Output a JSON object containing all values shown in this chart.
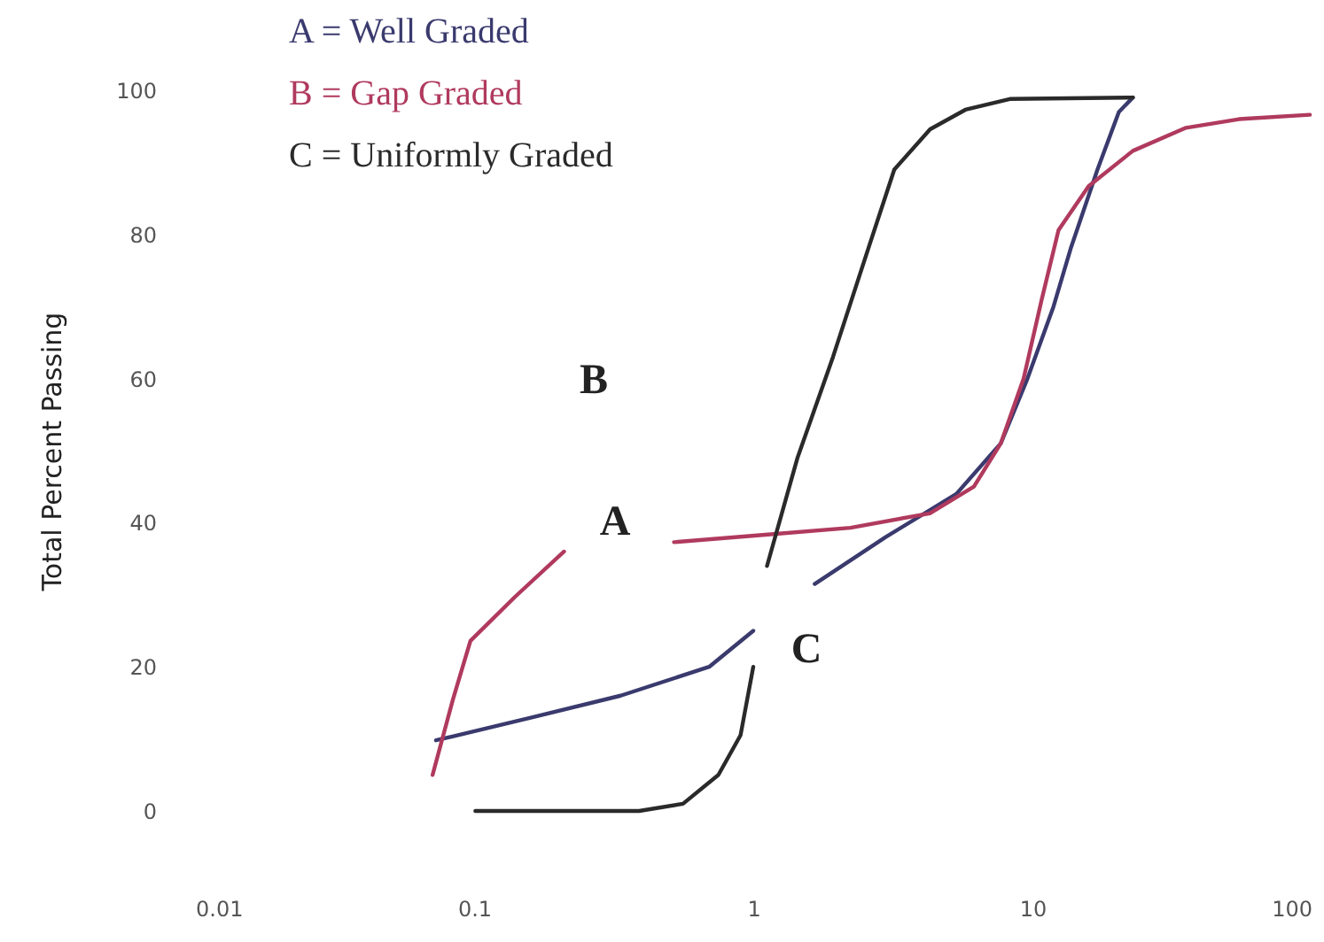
{
  "chart_data": {
    "type": "line",
    "ylabel": "Total Percent Passing",
    "xlim": [
      0.01,
      100
    ],
    "xticks": [
      0.01,
      0.1,
      1,
      10,
      100
    ],
    "ylim": [
      0,
      100
    ],
    "yticks": [
      0,
      20,
      40,
      60,
      80,
      100
    ],
    "log": "x",
    "grid": false,
    "legend": "top left",
    "marker": "none",
    "line_style": "solid",
    "series": [
      {
        "name": "A = Well Graded",
        "color": "#3a3a6e",
        "x": [
          0.073,
          0.162,
          0.335,
          0.695,
          1.0,
          1.3,
          1.66,
          2.98,
          5.34,
          7.7,
          9.6,
          11.9,
          13.7,
          17.1,
          20.4,
          22.9
        ],
        "values": [
          9.8,
          13,
          16,
          20,
          25,
          null,
          31.5,
          38,
          44,
          51,
          60,
          70,
          78,
          89,
          97,
          99
        ]
      },
      {
        "name": "B = Gap Graded",
        "color": "#b03a5e",
        "x": [
          0.071,
          0.084,
          0.097,
          0.14,
          0.21,
          0.3,
          0.52,
          1.08,
          2.23,
          4.29,
          6.17,
          7.7,
          9.3,
          10.8,
          12.4,
          15.9,
          22.9,
          35.5,
          55,
          98.6
        ],
        "values": [
          5,
          15.5,
          23.6,
          29.7,
          36,
          null,
          37.3,
          38.3,
          39.3,
          41.3,
          45,
          51,
          60,
          71,
          80.6,
          86.7,
          91.6,
          94.8,
          96,
          96.6
        ]
      },
      {
        "name": "C = Uniformly Graded",
        "color": "#2a2a2a",
        "x": [
          0.101,
          0.39,
          0.56,
          0.75,
          0.9,
          1.0,
          1.05,
          1.12,
          1.44,
          1.93,
          2.58,
          3.2,
          4.3,
          5.75,
          8.3,
          22.9
        ],
        "values": [
          0,
          0,
          1,
          5,
          10.5,
          20,
          null,
          34,
          49,
          63,
          78,
          89,
          94.6,
          97.3,
          98.8,
          99
        ]
      }
    ],
    "annotations": [
      "A",
      "B",
      "C"
    ]
  }
}
